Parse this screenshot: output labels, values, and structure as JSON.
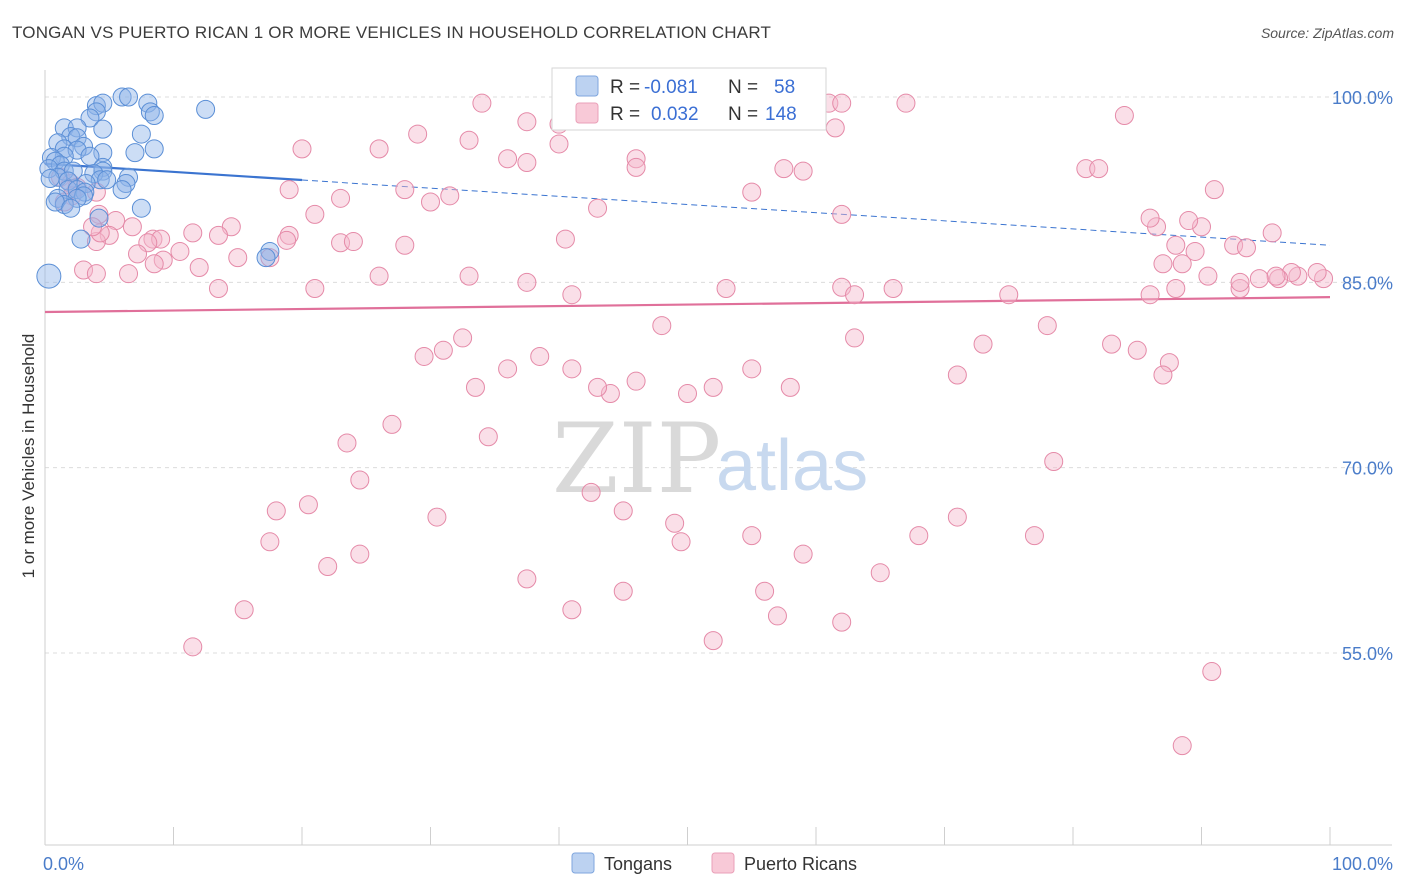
{
  "chart_data": {
    "type": "scatter",
    "title": "TONGAN VS PUERTO RICAN 1 OR MORE VEHICLES IN HOUSEHOLD CORRELATION CHART",
    "source": "Source: ZipAtlas.com",
    "xlabel": "",
    "ylabel": "1 or more Vehicles in Household",
    "xlim": [
      0,
      100
    ],
    "ylim": [
      39.5,
      101.5
    ],
    "x_tick_labels": [
      "0.0%",
      "100.0%"
    ],
    "y_ticks": [
      55,
      70,
      85,
      100
    ],
    "y_tick_labels": [
      "55.0%",
      "70.0%",
      "85.0%",
      "100.0%"
    ],
    "grid": true,
    "watermark": {
      "zip": "ZIP",
      "atlas": "atlas"
    },
    "legend": {
      "r_label": "R =",
      "n_label": "N =",
      "entries": [
        {
          "r": "-0.081",
          "n": "58"
        },
        {
          "r": "0.032",
          "n": "148"
        }
      ]
    },
    "series": [
      {
        "name": "Tongans",
        "color": "#8fb4e8",
        "stroke": "#5b8fd6",
        "trend": {
          "x0": 0,
          "y0": 94.6,
          "x1": 100,
          "y1": 88.0,
          "solid_until": 20,
          "color": "#3b74d0"
        },
        "points": [
          [
            6,
            100
          ],
          [
            6.5,
            100
          ],
          [
            8,
            99.5
          ],
          [
            4,
            99.3
          ],
          [
            4.5,
            99.5
          ],
          [
            12.5,
            99
          ],
          [
            8.2,
            98.8
          ],
          [
            4,
            98.8
          ],
          [
            8.5,
            98.5
          ],
          [
            3.5,
            98.3
          ],
          [
            1.5,
            97.5
          ],
          [
            2.5,
            97.5
          ],
          [
            4.5,
            97.4
          ],
          [
            7.5,
            97
          ],
          [
            2,
            96.8
          ],
          [
            2.5,
            96.7
          ],
          [
            1,
            96.3
          ],
          [
            3,
            96
          ],
          [
            1.5,
            95.8
          ],
          [
            2.5,
            95.7
          ],
          [
            4.5,
            95.5
          ],
          [
            7,
            95.5
          ],
          [
            8.5,
            95.8
          ],
          [
            1.5,
            95.2
          ],
          [
            3.5,
            95.2
          ],
          [
            0.5,
            95.1
          ],
          [
            0.8,
            94.8
          ],
          [
            1.2,
            94.5
          ],
          [
            4.5,
            94.3
          ],
          [
            4.5,
            94
          ],
          [
            0.3,
            94.2
          ],
          [
            1.5,
            94
          ],
          [
            2.2,
            94
          ],
          [
            3.8,
            93.8
          ],
          [
            1,
            93.5
          ],
          [
            0.4,
            93.4
          ],
          [
            4.3,
            93.3
          ],
          [
            4.8,
            93.3
          ],
          [
            1.8,
            93.2
          ],
          [
            3.2,
            93
          ],
          [
            6.5,
            93.5
          ],
          [
            6.3,
            93
          ],
          [
            1.8,
            92.5
          ],
          [
            2.5,
            92.5
          ],
          [
            6,
            92.5
          ],
          [
            3.1,
            92.3
          ],
          [
            3,
            92
          ],
          [
            1,
            91.8
          ],
          [
            2.5,
            91.8
          ],
          [
            1.5,
            91.3
          ],
          [
            0.8,
            91.5
          ],
          [
            2,
            91
          ],
          [
            7.5,
            91
          ],
          [
            4.2,
            90.2
          ],
          [
            2.8,
            88.5
          ],
          [
            17.5,
            87.5
          ],
          [
            17.2,
            87
          ],
          [
            0.3,
            85.5
          ]
        ]
      },
      {
        "name": "Puerto Ricans",
        "color": "#f4b8cb",
        "stroke": "#e58aa8",
        "trend": {
          "x0": 0,
          "y0": 82.6,
          "x1": 100,
          "y1": 83.8,
          "solid_until": 100,
          "color": "#e0709a"
        },
        "points": [
          [
            34,
            99.5
          ],
          [
            47.5,
            99.5
          ],
          [
            50,
            99.5
          ],
          [
            55,
            99.5
          ],
          [
            59,
            99.5
          ],
          [
            61,
            99.5
          ],
          [
            62,
            99.5
          ],
          [
            67,
            99.5
          ],
          [
            55.5,
            99
          ],
          [
            58,
            99
          ],
          [
            84,
            98.5
          ],
          [
            37.5,
            98
          ],
          [
            40,
            97.8
          ],
          [
            61.5,
            97.5
          ],
          [
            29,
            97
          ],
          [
            33,
            96.5
          ],
          [
            40,
            96.2
          ],
          [
            20,
            95.8
          ],
          [
            26,
            95.8
          ],
          [
            36,
            95
          ],
          [
            46,
            95
          ],
          [
            37.5,
            94.7
          ],
          [
            46,
            94.3
          ],
          [
            57.5,
            94.2
          ],
          [
            59,
            94
          ],
          [
            81,
            94.2
          ],
          [
            82,
            94.2
          ],
          [
            28,
            92.5
          ],
          [
            19,
            92.5
          ],
          [
            55,
            92.3
          ],
          [
            31.5,
            92
          ],
          [
            23,
            91.8
          ],
          [
            30,
            91.5
          ],
          [
            43,
            91
          ],
          [
            62,
            90.5
          ],
          [
            21,
            90.5
          ],
          [
            14.5,
            89.5
          ],
          [
            19,
            88.8
          ],
          [
            23,
            88.2
          ],
          [
            40.5,
            88.5
          ],
          [
            1.2,
            93.5
          ],
          [
            2,
            93
          ],
          [
            2.5,
            92.7
          ],
          [
            4,
            92.3
          ],
          [
            2.1,
            92
          ],
          [
            1.5,
            91.5
          ],
          [
            4.2,
            90.5
          ],
          [
            5.5,
            90
          ],
          [
            6.8,
            89.5
          ],
          [
            11.5,
            89
          ],
          [
            8.4,
            88.5
          ],
          [
            5,
            88.8
          ],
          [
            4,
            88.3
          ],
          [
            9,
            88.5
          ],
          [
            4.3,
            89
          ],
          [
            3.7,
            89.5
          ],
          [
            10.5,
            87.5
          ],
          [
            8,
            88.2
          ],
          [
            7.2,
            87.3
          ],
          [
            13.5,
            88.8
          ],
          [
            18.8,
            88.4
          ],
          [
            24,
            88.3
          ],
          [
            28,
            88
          ],
          [
            17.5,
            87
          ],
          [
            15,
            87
          ],
          [
            12,
            86.2
          ],
          [
            9.2,
            86.8
          ],
          [
            8.5,
            86.5
          ],
          [
            3,
            86
          ],
          [
            4,
            85.7
          ],
          [
            6.5,
            85.7
          ],
          [
            26,
            85.5
          ],
          [
            33,
            85.5
          ],
          [
            21,
            84.5
          ],
          [
            13.5,
            84.5
          ],
          [
            37.5,
            85
          ],
          [
            41,
            84
          ],
          [
            53,
            84.5
          ],
          [
            62,
            84.6
          ],
          [
            63,
            84
          ],
          [
            75,
            84
          ],
          [
            86,
            84
          ],
          [
            88,
            84.5
          ],
          [
            93,
            84.5
          ],
          [
            97.5,
            85.5
          ],
          [
            99.5,
            85.3
          ],
          [
            99,
            85.8
          ],
          [
            97,
            85.8
          ],
          [
            96,
            85.3
          ],
          [
            95.8,
            85.5
          ],
          [
            94.5,
            85.3
          ],
          [
            90.5,
            85.5
          ],
          [
            88.5,
            86.5
          ],
          [
            87,
            86.5
          ],
          [
            89.5,
            87.5
          ],
          [
            88,
            88
          ],
          [
            90,
            89.5
          ],
          [
            86.5,
            89.5
          ],
          [
            86,
            90.2
          ],
          [
            89,
            90
          ],
          [
            92.5,
            88
          ],
          [
            93.5,
            87.8
          ],
          [
            95.5,
            89
          ],
          [
            91,
            92.5
          ],
          [
            93,
            85
          ],
          [
            66,
            84.5
          ],
          [
            48,
            81.5
          ],
          [
            63,
            80.5
          ],
          [
            73,
            80
          ],
          [
            78,
            81.5
          ],
          [
            83,
            80
          ],
          [
            85,
            79.5
          ],
          [
            87.5,
            78.5
          ],
          [
            87,
            77.5
          ],
          [
            71,
            77.5
          ],
          [
            55,
            78
          ],
          [
            58,
            76.5
          ],
          [
            52,
            76.5
          ],
          [
            50,
            76
          ],
          [
            44,
            76
          ],
          [
            29.5,
            79
          ],
          [
            31,
            79.5
          ],
          [
            32.5,
            80.5
          ],
          [
            36,
            78
          ],
          [
            38.5,
            79
          ],
          [
            41,
            78
          ],
          [
            43,
            76.5
          ],
          [
            46,
            77
          ],
          [
            33.5,
            76.5
          ],
          [
            34.5,
            72.5
          ],
          [
            27,
            73.5
          ],
          [
            23.5,
            72
          ],
          [
            24.5,
            69
          ],
          [
            20.5,
            67
          ],
          [
            18,
            66.5
          ],
          [
            17.5,
            64
          ],
          [
            22,
            62
          ],
          [
            24.5,
            63
          ],
          [
            30.5,
            66
          ],
          [
            42.5,
            68
          ],
          [
            45,
            66.5
          ],
          [
            49,
            65.5
          ],
          [
            56,
            60
          ],
          [
            49.5,
            64
          ],
          [
            55,
            64.5
          ],
          [
            59,
            63
          ],
          [
            65,
            61.5
          ],
          [
            71,
            66
          ],
          [
            78.5,
            70.5
          ],
          [
            77,
            64.5
          ],
          [
            68,
            64.5
          ],
          [
            62,
            57.5
          ],
          [
            57,
            58
          ],
          [
            45,
            60
          ],
          [
            37.5,
            61
          ],
          [
            52,
            56
          ],
          [
            41,
            58.5
          ],
          [
            11.5,
            55.5
          ],
          [
            15.5,
            58.5
          ],
          [
            90.8,
            53.5
          ]
        ]
      }
    ],
    "extra_points": [
      [
        88.5,
        47.5
      ]
    ]
  }
}
